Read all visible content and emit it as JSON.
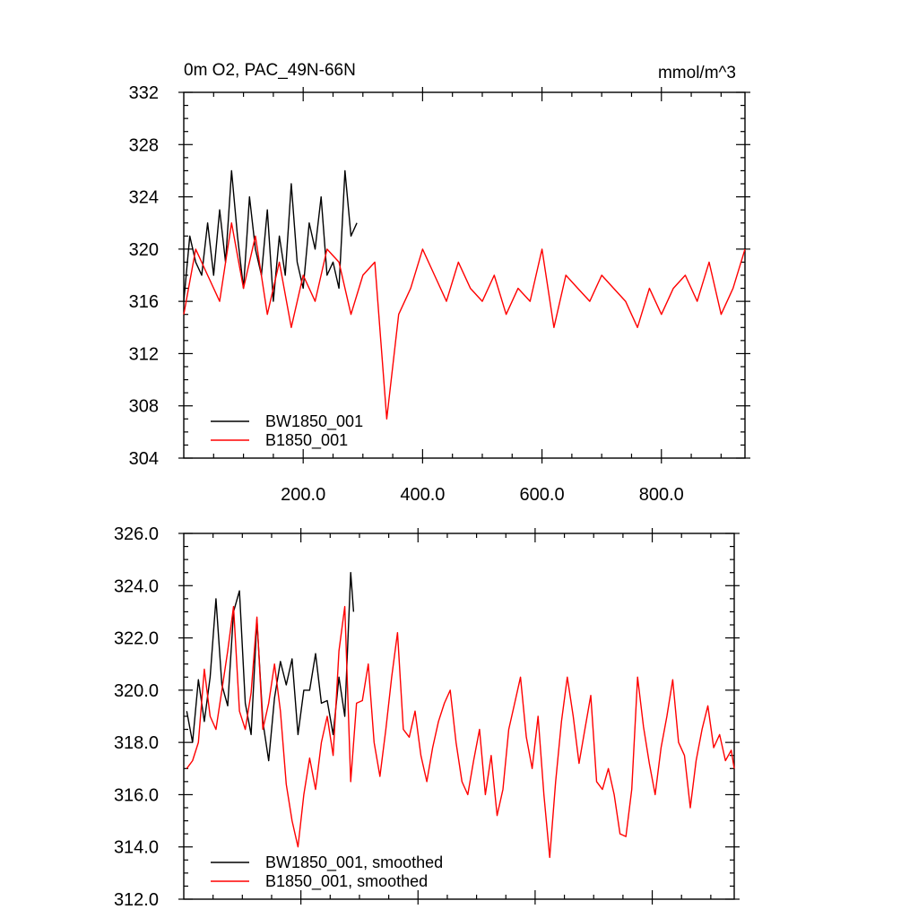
{
  "chart_data": [
    {
      "type": "line",
      "title_left": "0m O2, PAC_49N-66N",
      "title_right": "mmol/m^3",
      "xlim": [
        0,
        940
      ],
      "ylim": [
        304,
        332
      ],
      "y_ticks": [
        304,
        308,
        312,
        316,
        320,
        324,
        328,
        332
      ],
      "y_tick_labels": [
        "304",
        "308",
        "312",
        "316",
        "320",
        "324",
        "328",
        "332"
      ],
      "x_ticks": [
        200,
        400,
        600,
        800
      ],
      "x_tick_labels": [
        "200.0",
        "400.0",
        "600.0",
        "800.0"
      ],
      "legend_placement": "bottom-left",
      "series": [
        {
          "name": "BW1850_001",
          "color": "#000000",
          "x": [
            0,
            10,
            20,
            30,
            40,
            50,
            60,
            70,
            80,
            90,
            100,
            110,
            120,
            130,
            140,
            150,
            160,
            170,
            180,
            190,
            200,
            210,
            220,
            230,
            240,
            250,
            260,
            270,
            280,
            290
          ],
          "y": [
            316,
            321,
            319,
            318,
            322,
            318,
            323,
            319,
            326,
            321,
            317,
            324,
            320,
            318,
            323,
            316,
            321,
            318,
            325,
            319,
            317,
            322,
            320,
            324,
            318,
            319,
            317,
            326,
            321,
            322
          ]
        },
        {
          "name": "B1850_001",
          "color": "#ff0000",
          "x": [
            0,
            20,
            40,
            60,
            80,
            100,
            120,
            140,
            160,
            180,
            200,
            220,
            240,
            260,
            280,
            300,
            320,
            340,
            360,
            380,
            400,
            420,
            440,
            460,
            480,
            500,
            520,
            540,
            560,
            580,
            600,
            620,
            640,
            660,
            680,
            700,
            720,
            740,
            760,
            780,
            800,
            820,
            840,
            860,
            880,
            900,
            920,
            940
          ],
          "y": [
            315,
            320,
            318,
            316,
            322,
            317,
            321,
            315,
            319,
            314,
            318,
            316,
            320,
            319,
            315,
            318,
            319,
            307,
            315,
            317,
            320,
            318,
            316,
            319,
            317,
            316,
            318,
            315,
            317,
            316,
            320,
            314,
            318,
            317,
            316,
            318,
            317,
            316,
            314,
            317,
            315,
            317,
            318,
            316,
            319,
            315,
            317,
            320
          ]
        }
      ]
    },
    {
      "type": "line",
      "xlim": [
        0,
        940
      ],
      "ylim": [
        312,
        326
      ],
      "y_ticks": [
        312,
        314,
        316,
        318,
        320,
        322,
        324,
        326
      ],
      "y_tick_labels": [
        "312.0",
        "314.0",
        "316.0",
        "318.0",
        "320.0",
        "322.0",
        "324.0",
        "326.0"
      ],
      "x_ticks": [
        200,
        400,
        600,
        800
      ],
      "x_tick_labels": [],
      "legend_placement": "bottom-left",
      "series": [
        {
          "name": "BW1850_001, smoothed",
          "color": "#000000",
          "x": [
            5,
            15,
            25,
            35,
            45,
            55,
            65,
            75,
            85,
            95,
            105,
            115,
            125,
            135,
            145,
            155,
            165,
            175,
            185,
            195,
            205,
            215,
            225,
            235,
            245,
            255,
            265,
            275,
            285,
            290
          ],
          "y": [
            319.2,
            318.0,
            320.4,
            318.8,
            320.5,
            323.5,
            320.2,
            319.4,
            323.0,
            323.8,
            319.5,
            318.3,
            322.7,
            318.8,
            317.3,
            319.7,
            321.1,
            320.2,
            321.2,
            318.3,
            320.0,
            320.0,
            321.4,
            319.5,
            319.6,
            318.3,
            320.5,
            319.0,
            324.5,
            323.0
          ]
        },
        {
          "name": "B1850_001, smoothed",
          "color": "#ff0000",
          "x": [
            5,
            15,
            25,
            35,
            45,
            55,
            65,
            75,
            85,
            95,
            105,
            115,
            125,
            135,
            145,
            155,
            165,
            175,
            185,
            195,
            205,
            215,
            225,
            235,
            245,
            255,
            265,
            275,
            285,
            295,
            305,
            315,
            325,
            335,
            345,
            355,
            365,
            375,
            385,
            395,
            405,
            415,
            425,
            435,
            445,
            455,
            465,
            475,
            485,
            495,
            505,
            515,
            525,
            535,
            545,
            555,
            565,
            575,
            585,
            595,
            605,
            615,
            625,
            635,
            645,
            655,
            665,
            675,
            685,
            695,
            705,
            715,
            725,
            735,
            745,
            755,
            765,
            775,
            785,
            795,
            805,
            815,
            825,
            835,
            845,
            855,
            865,
            875,
            885,
            895,
            905,
            915,
            925,
            935,
            940
          ],
          "y": [
            317.0,
            317.3,
            318.0,
            320.8,
            319.0,
            318.5,
            320.0,
            321.5,
            323.2,
            319.2,
            318.5,
            319.9,
            322.8,
            318.5,
            319.5,
            321.0,
            319.2,
            316.4,
            315.0,
            314.0,
            316.0,
            317.4,
            316.2,
            318.0,
            319.0,
            317.5,
            321.5,
            323.2,
            316.5,
            319.5,
            319.6,
            321.0,
            318.0,
            316.7,
            318.5,
            320.5,
            322.2,
            318.5,
            318.2,
            319.2,
            317.5,
            316.5,
            317.8,
            318.8,
            319.5,
            320.0,
            318.0,
            316.5,
            316.0,
            317.3,
            318.5,
            316.0,
            317.5,
            315.2,
            316.2,
            318.5,
            319.5,
            320.5,
            318.2,
            317.0,
            319.0,
            316.0,
            313.6,
            316.5,
            318.8,
            320.5,
            319.0,
            317.2,
            318.5,
            319.8,
            316.5,
            316.2,
            317.0,
            316.0,
            314.5,
            314.4,
            316.2,
            320.5,
            318.6,
            317.2,
            316.0,
            317.8,
            319.0,
            320.4,
            318.0,
            317.5,
            315.5,
            317.3,
            318.5,
            319.4,
            317.8,
            318.3,
            317.3,
            317.7,
            317.0
          ]
        }
      ]
    }
  ]
}
